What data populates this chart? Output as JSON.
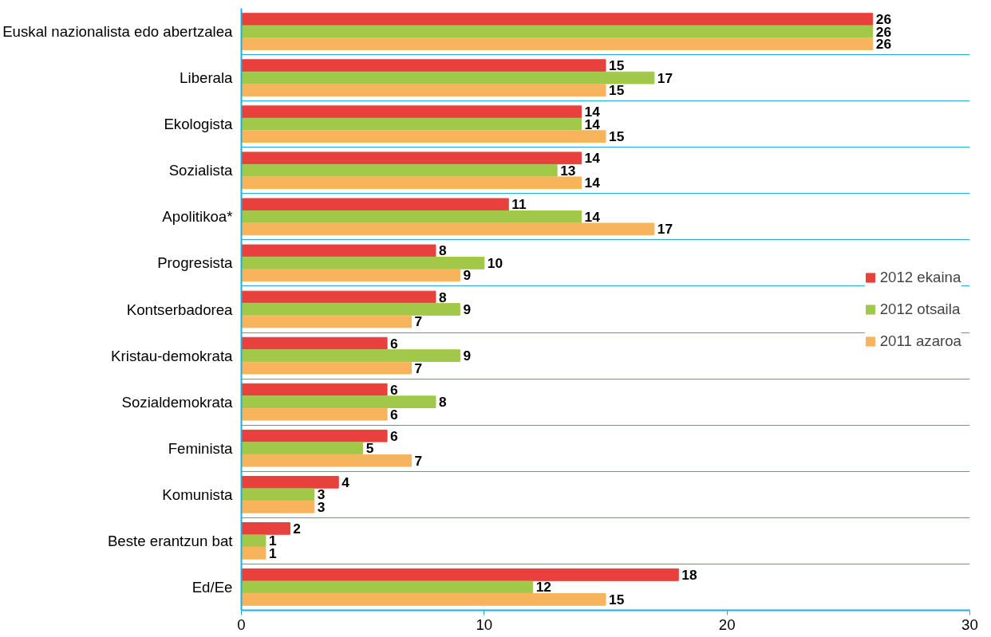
{
  "chart_data": {
    "type": "bar",
    "orientation": "horizontal",
    "categories": [
      "Euskal nazionalista edo abertzalea",
      "Liberala",
      "Ekologista",
      "Sozialista",
      "Apolitikoa*",
      "Progresista",
      "Kontserbadorea",
      "Kristau-demokrata",
      "Sozialdemokrata",
      "Feminista",
      "Komunista",
      "Beste erantzun bat",
      "Ed/Ee"
    ],
    "series": [
      {
        "name": "2012 ekaina",
        "color": "#e8403c",
        "values": [
          26,
          15,
          14,
          14,
          11,
          8,
          8,
          6,
          6,
          6,
          4,
          2,
          18
        ]
      },
      {
        "name": "2012 otsaila",
        "color": "#a2c84a",
        "values": [
          26,
          17,
          14,
          13,
          14,
          10,
          9,
          9,
          8,
          5,
          3,
          1,
          12
        ]
      },
      {
        "name": "2011 azaroa",
        "color": "#f8b45c",
        "values": [
          26,
          15,
          15,
          14,
          17,
          9,
          7,
          7,
          6,
          7,
          3,
          1,
          15
        ]
      }
    ],
    "xlim": [
      0,
      30
    ],
    "xticks": [
      0,
      10,
      20,
      30
    ],
    "grid": "y",
    "legend": "right",
    "data_labels": true
  }
}
